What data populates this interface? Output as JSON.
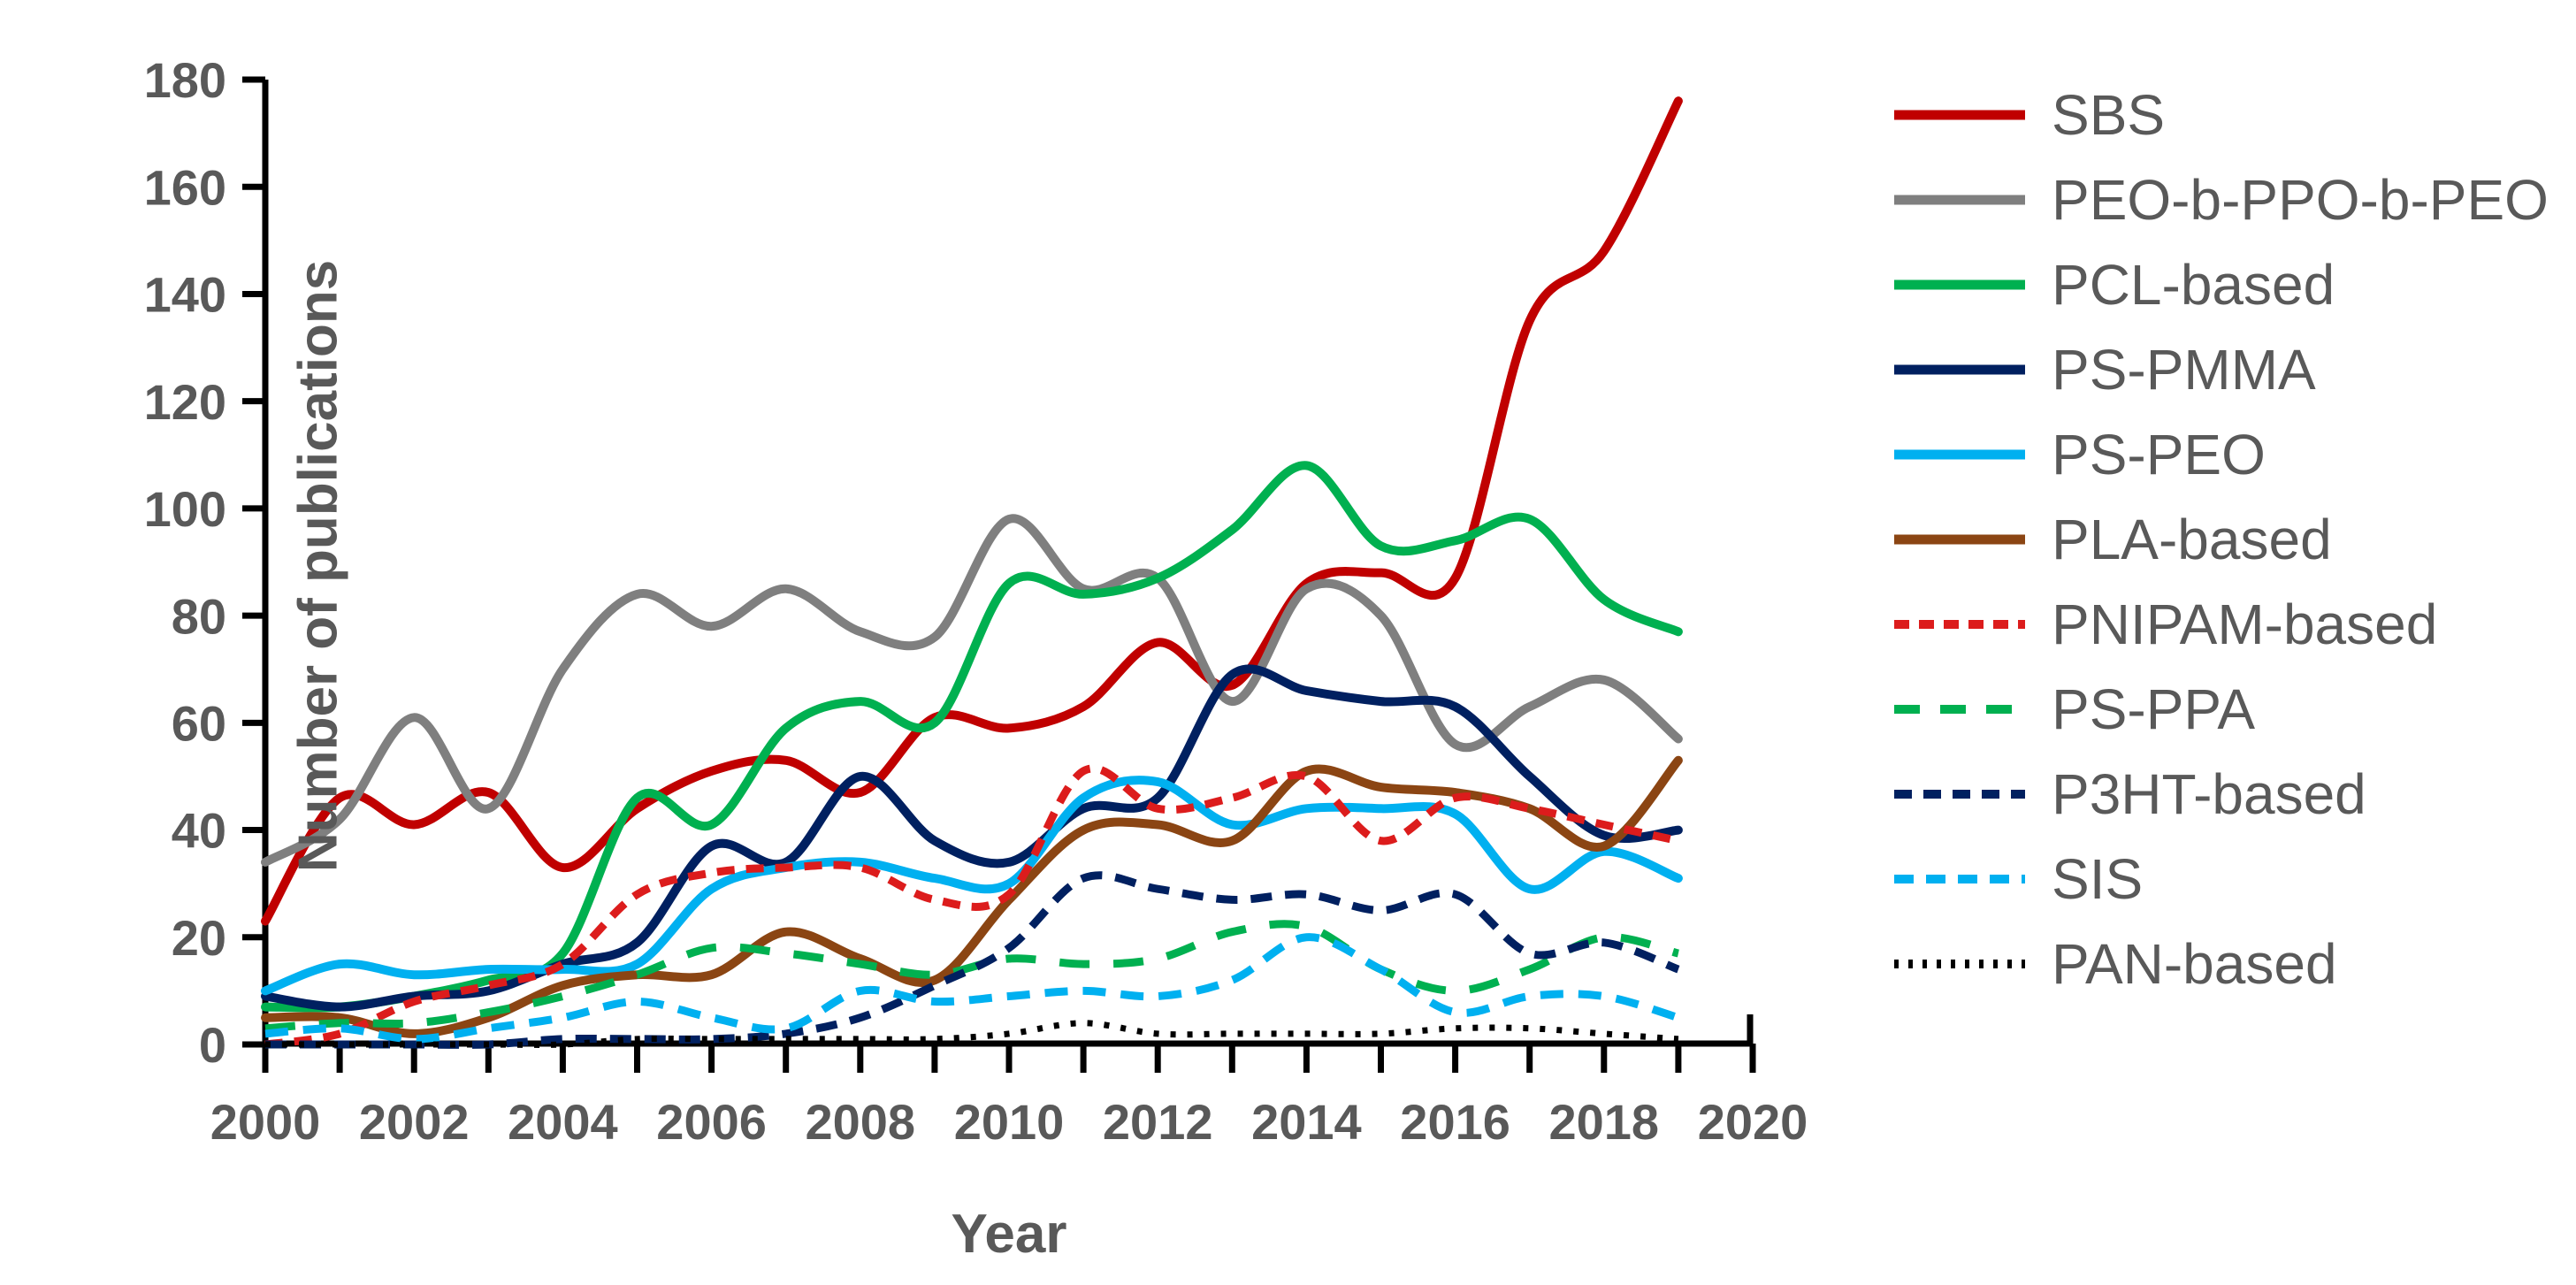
{
  "chart_data": {
    "type": "line",
    "title": "",
    "xlabel": "Year",
    "ylabel": "Number of publications",
    "x_range": [
      2000,
      2020
    ],
    "y_range": [
      0,
      180
    ],
    "y_ticks": [
      0,
      20,
      40,
      60,
      80,
      100,
      120,
      140,
      160,
      180
    ],
    "x_tick_years": [
      2000,
      2001,
      2002,
      2003,
      2004,
      2005,
      2006,
      2007,
      2008,
      2009,
      2010,
      2011,
      2012,
      2013,
      2014,
      2015,
      2016,
      2017,
      2018,
      2019,
      2020
    ],
    "x_label_years": [
      2000,
      2002,
      2004,
      2006,
      2008,
      2010,
      2012,
      2014,
      2016,
      2018,
      2020
    ],
    "grid": false,
    "legend_position": "right",
    "smoothed_lines": true,
    "axis_color": "#000000",
    "text_color": "#595959",
    "x": [
      2000,
      2001,
      2002,
      2003,
      2004,
      2005,
      2006,
      2007,
      2008,
      2009,
      2010,
      2011,
      2012,
      2013,
      2014,
      2015,
      2016,
      2017,
      2018,
      2019
    ],
    "series": [
      {
        "name": "SBS",
        "color": "#C00000",
        "dash": "solid",
        "width": 10,
        "values": [
          23,
          46,
          41,
          47,
          33,
          44,
          51,
          53,
          47,
          61,
          59,
          63,
          75,
          67,
          86,
          88,
          87,
          135,
          148,
          176
        ]
      },
      {
        "name": "PEO-b-PPO-b-PEO",
        "color": "#7F7F7F",
        "dash": "solid",
        "width": 10,
        "values": [
          34,
          42,
          61,
          44,
          70,
          84,
          78,
          85,
          77,
          76,
          98,
          85,
          87,
          64,
          85,
          80,
          56,
          63,
          68,
          57
        ]
      },
      {
        "name": "PCL-based",
        "color": "#00B050",
        "dash": "solid",
        "width": 10,
        "values": [
          7,
          7,
          9,
          12,
          17,
          46,
          41,
          59,
          64,
          60,
          86,
          84,
          87,
          96,
          108,
          93,
          94,
          98,
          83,
          77
        ]
      },
      {
        "name": "PS-PMMA",
        "color": "#002060",
        "dash": "solid",
        "width": 10,
        "values": [
          9,
          7,
          9,
          10,
          15,
          19,
          37,
          34,
          50,
          38,
          34,
          44,
          46,
          69,
          66,
          64,
          63,
          50,
          39,
          40
        ]
      },
      {
        "name": "PS-PEO",
        "color": "#00B0F0",
        "dash": "solid",
        "width": 10,
        "values": [
          10,
          15,
          13,
          14,
          14,
          15,
          29,
          33,
          34,
          31,
          30,
          46,
          49,
          41,
          44,
          44,
          43,
          29,
          36,
          31
        ]
      },
      {
        "name": "PLA-based",
        "color": "#8B4513",
        "dash": "solid",
        "width": 10,
        "values": [
          5,
          5,
          2,
          5,
          11,
          13,
          13,
          21,
          16,
          12,
          27,
          40,
          41,
          38,
          51,
          48,
          47,
          44,
          37,
          53
        ]
      },
      {
        "name": "PNIPAM-based",
        "color": "#DC1C1C",
        "dash": "20 13",
        "width": 9,
        "values": [
          0,
          2,
          8,
          11,
          15,
          28,
          32,
          33,
          33,
          27,
          28,
          51,
          44,
          46,
          50,
          38,
          46,
          44,
          41,
          38
        ]
      },
      {
        "name": "PS-PPA",
        "color": "#00B050",
        "dash": "34 27",
        "width": 9,
        "values": [
          3,
          4,
          4,
          6,
          9,
          13,
          18,
          17,
          15,
          13,
          16,
          15,
          16,
          21,
          22,
          14,
          10,
          14,
          20,
          17
        ]
      },
      {
        "name": "P3HT-based",
        "color": "#002060",
        "dash": "24 15",
        "width": 9,
        "values": [
          0,
          0,
          0,
          0,
          1,
          1,
          1,
          2,
          5,
          11,
          18,
          31,
          29,
          27,
          28,
          25,
          28,
          17,
          19,
          14
        ]
      },
      {
        "name": "SIS",
        "color": "#00B0F0",
        "dash": "26 17",
        "width": 9,
        "values": [
          2,
          3,
          1,
          3,
          5,
          8,
          5,
          3,
          10,
          8,
          9,
          10,
          9,
          12,
          20,
          14,
          6,
          9,
          9,
          5
        ]
      },
      {
        "name": "PAN-based",
        "color": "#000000",
        "dash": "6 13",
        "width": 7,
        "values": [
          0,
          0,
          0,
          0,
          0,
          1,
          1,
          1,
          1,
          1,
          2,
          4,
          2,
          2,
          2,
          2,
          3,
          3,
          2,
          1
        ]
      }
    ]
  },
  "layout_note": "publications per year by block-copolymer family, 2000-2019"
}
